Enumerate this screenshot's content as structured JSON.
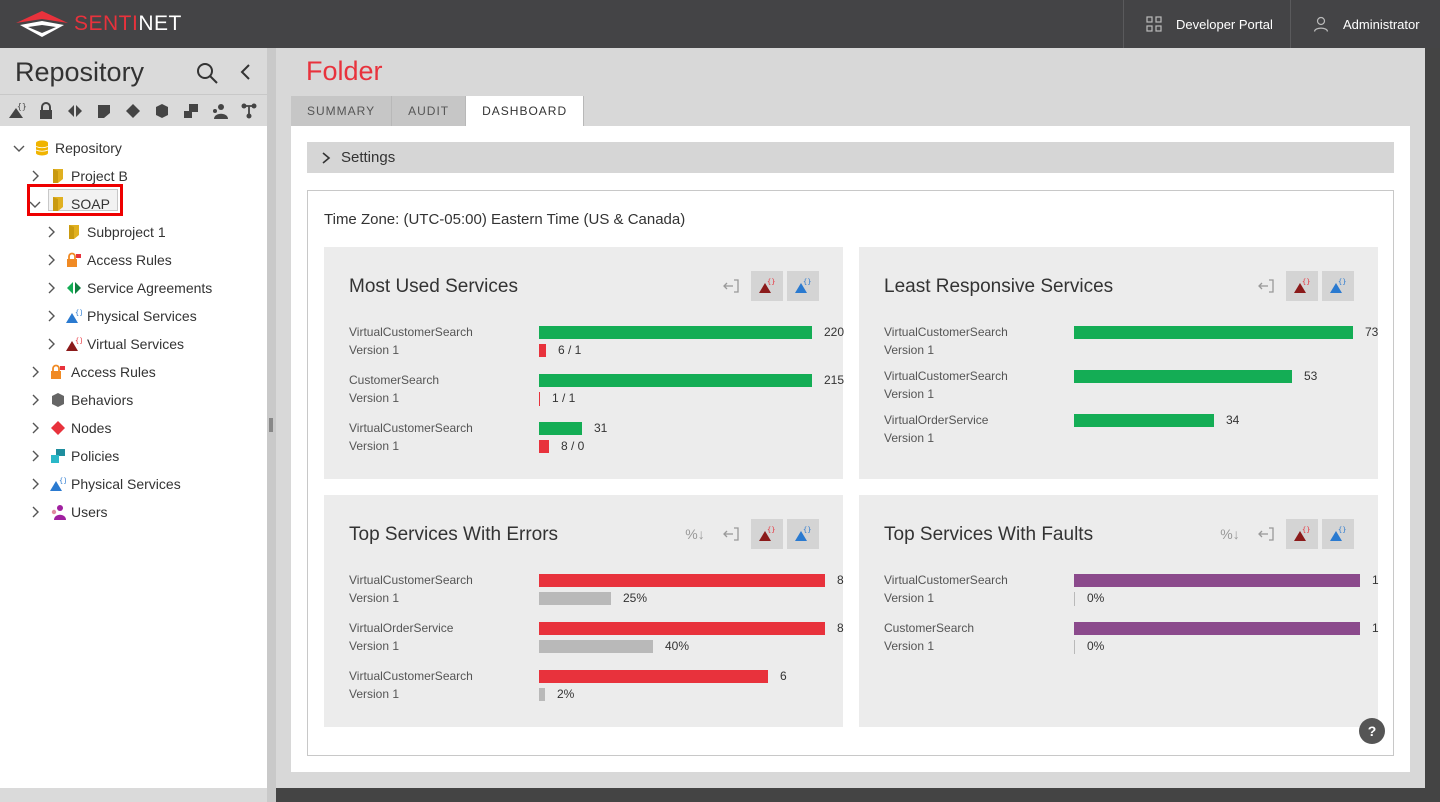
{
  "app": {
    "logo_prefix": "SENTI",
    "logo_suffix": "NET",
    "developer_portal": "Developer Portal",
    "user": "Administrator"
  },
  "sidebar": {
    "title": "Repository",
    "tree": [
      {
        "label": "Repository",
        "icon": "database-icon",
        "color": "#f0b400"
      },
      {
        "label": "Project B",
        "icon": "folder-icon",
        "color": "#e0b020"
      },
      {
        "label": "SOAP",
        "icon": "folder-icon",
        "color": "#e0b020",
        "selected": true
      },
      {
        "label": "Subproject 1",
        "icon": "folder-icon",
        "color": "#e0b020"
      },
      {
        "label": "Access Rules",
        "icon": "lock-icon",
        "color": "#f08a24"
      },
      {
        "label": "Service Agreements",
        "icon": "agreement-icon",
        "color": "#14ad55"
      },
      {
        "label": "Physical Services",
        "icon": "physical-service-icon",
        "color": "#2a7ad0"
      },
      {
        "label": "Virtual Services",
        "icon": "virtual-service-icon",
        "color": "#8b1a1a"
      },
      {
        "label": "Access Rules",
        "icon": "lock-icon",
        "color": "#f08a24"
      },
      {
        "label": "Behaviors",
        "icon": "behavior-icon",
        "color": "#666666"
      },
      {
        "label": "Nodes",
        "icon": "node-icon",
        "color": "#e8323c"
      },
      {
        "label": "Policies",
        "icon": "policy-icon",
        "color": "#2ab8c8"
      },
      {
        "label": "Physical Services",
        "icon": "physical-service-icon",
        "color": "#2a7ad0"
      },
      {
        "label": "Users",
        "icon": "users-icon",
        "color": "#a020a0"
      }
    ]
  },
  "main": {
    "title": "Folder",
    "tabs": [
      "SUMMARY",
      "AUDIT",
      "DASHBOARD"
    ],
    "active_tab": "DASHBOARD",
    "settings_label": "Settings",
    "timezone": "Time Zone: (UTC-05:00) Eastern Time (US & Canada)"
  },
  "cards": {
    "most_used": {
      "title": "Most Used Services",
      "rows": [
        {
          "name": "VirtualCustomerSearch",
          "version": "Version 1",
          "value": "220",
          "sub": "6 / 1",
          "frac": 1.0,
          "subfrac": 0.027
        },
        {
          "name": "CustomerSearch",
          "version": "Version 1",
          "value": "215",
          "sub": "1 / 1",
          "frac": 1.0,
          "subfrac": 0.0
        },
        {
          "name": "VirtualCustomerSearch",
          "version": "Version 1",
          "value": "31",
          "sub": "8 / 0",
          "frac": 0.157,
          "subfrac": 0.036
        }
      ]
    },
    "least_responsive": {
      "title": "Least Responsive Services",
      "rows": [
        {
          "name": "VirtualCustomerSearch",
          "version": "Version 1",
          "value": "73",
          "frac": 1.0
        },
        {
          "name": "VirtualCustomerSearch",
          "version": "Version 1",
          "value": "53",
          "frac": 0.78
        },
        {
          "name": "VirtualOrderService",
          "version": "Version 1",
          "value": "34",
          "frac": 0.5
        }
      ]
    },
    "top_errors": {
      "title": "Top Services With Errors",
      "sort_label": "%↓",
      "rows": [
        {
          "name": "VirtualCustomerSearch",
          "version": "Version 1",
          "value": "8",
          "sub": "25%",
          "frac": 1.0,
          "subfrac": 0.25
        },
        {
          "name": "VirtualOrderService",
          "version": "Version 1",
          "value": "8",
          "sub": "40%",
          "frac": 1.0,
          "subfrac": 0.4
        },
        {
          "name": "VirtualCustomerSearch",
          "version": "Version 1",
          "value": "6",
          "sub": "2%",
          "frac": 0.8,
          "subfrac": 0.02
        }
      ]
    },
    "top_faults": {
      "title": "Top Services With Faults",
      "sort_label": "%↓",
      "rows": [
        {
          "name": "VirtualCustomerSearch",
          "version": "Version 1",
          "value": "1",
          "sub": "0%",
          "frac": 1.0,
          "subfrac": 0.0
        },
        {
          "name": "CustomerSearch",
          "version": "Version 1",
          "value": "1",
          "sub": "0%",
          "frac": 1.0,
          "subfrac": 0.0
        }
      ]
    }
  },
  "help_label": "?"
}
